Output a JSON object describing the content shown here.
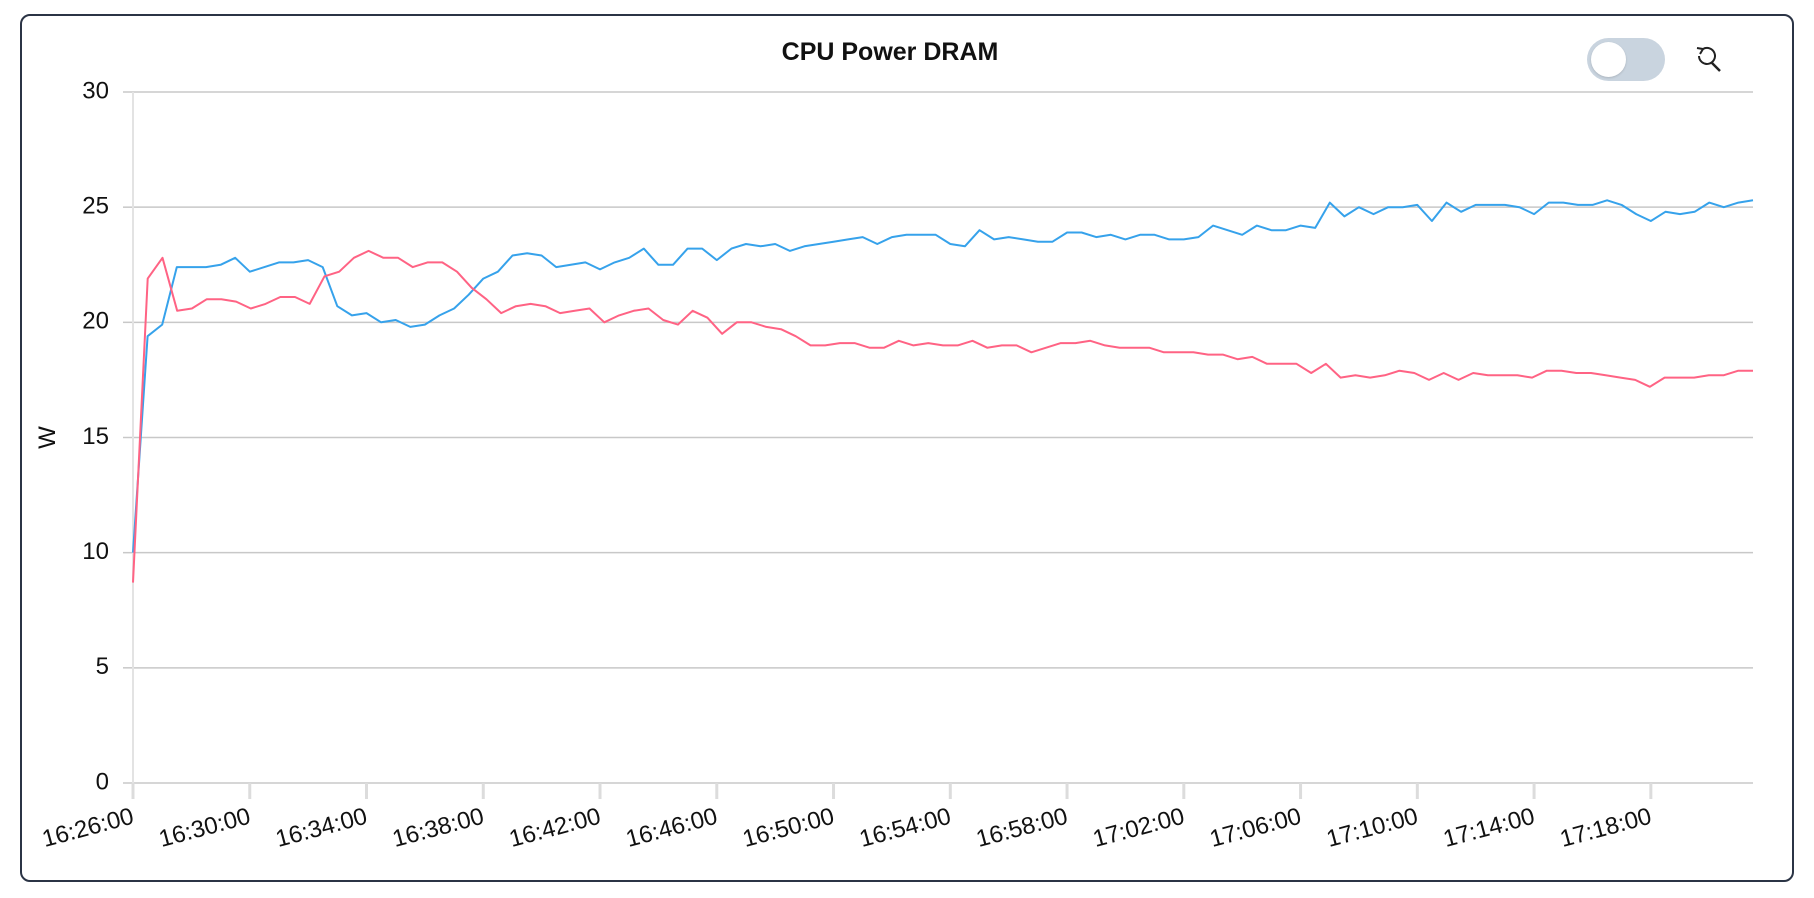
{
  "chart_data": {
    "type": "line",
    "title": "CPU Power DRAM",
    "xlabel": "",
    "ylabel": "W",
    "ylim": [
      0,
      30
    ],
    "yticks": [
      "0",
      "5",
      "10",
      "15",
      "20",
      "25",
      "30"
    ],
    "x_start": "16:26:00",
    "x_end": "17:21:30",
    "xticks": [
      "16:26:00",
      "16:30:00",
      "16:34:00",
      "16:38:00",
      "16:42:00",
      "16:46:00",
      "16:50:00",
      "16:54:00",
      "16:58:00",
      "17:02:00",
      "17:06:00",
      "17:10:00",
      "17:14:00",
      "17:18:00"
    ],
    "grid": true,
    "legend": "none",
    "series": [
      {
        "color": "#36a2eb",
        "values": [
          10.0,
          19.4,
          19.9,
          22.4,
          22.4,
          22.4,
          22.5,
          22.8,
          22.2,
          22.4,
          22.6,
          22.6,
          22.7,
          22.4,
          20.7,
          20.3,
          20.4,
          20.0,
          20.1,
          19.8,
          19.9,
          20.3,
          20.6,
          21.2,
          21.9,
          22.2,
          22.9,
          23.0,
          22.9,
          22.4,
          22.5,
          22.6,
          22.3,
          22.6,
          22.8,
          23.2,
          22.5,
          22.5,
          23.2,
          23.2,
          22.7,
          23.2,
          23.4,
          23.3,
          23.4,
          23.1,
          23.3,
          23.4,
          23.5,
          23.6,
          23.7,
          23.4,
          23.7,
          23.8,
          23.8,
          23.8,
          23.4,
          23.3,
          24.0,
          23.6,
          23.7,
          23.6,
          23.5,
          23.5,
          23.9,
          23.9,
          23.7,
          23.8,
          23.6,
          23.8,
          23.8,
          23.6,
          23.6,
          23.7,
          24.2,
          24.0,
          23.8,
          24.2,
          24.0,
          24.0,
          24.2,
          24.1,
          25.2,
          24.6,
          25.0,
          24.7,
          25.0,
          25.0,
          25.1,
          24.4,
          25.2,
          24.8,
          25.1,
          25.1,
          25.1,
          25.0,
          24.7,
          25.2,
          25.2,
          25.1,
          25.1,
          25.3,
          25.1,
          24.7,
          24.4,
          24.8,
          24.7,
          24.8,
          25.2,
          25.0,
          25.2,
          25.3
        ]
      },
      {
        "color": "#ff6384",
        "values": [
          8.7,
          21.9,
          22.8,
          20.5,
          20.6,
          21.0,
          21.0,
          20.9,
          20.6,
          20.8,
          21.1,
          21.1,
          20.8,
          22.0,
          22.2,
          22.8,
          23.1,
          22.8,
          22.8,
          22.4,
          22.6,
          22.6,
          22.2,
          21.5,
          21.0,
          20.4,
          20.7,
          20.8,
          20.7,
          20.4,
          20.5,
          20.6,
          20.0,
          20.3,
          20.5,
          20.6,
          20.1,
          19.9,
          20.5,
          20.2,
          19.5,
          20.0,
          20.0,
          19.8,
          19.7,
          19.4,
          19.0,
          19.0,
          19.1,
          19.1,
          18.9,
          18.9,
          19.2,
          19.0,
          19.1,
          19.0,
          19.0,
          19.2,
          18.9,
          19.0,
          19.0,
          18.7,
          18.9,
          19.1,
          19.1,
          19.2,
          19.0,
          18.9,
          18.9,
          18.9,
          18.7,
          18.7,
          18.7,
          18.6,
          18.6,
          18.4,
          18.5,
          18.2,
          18.2,
          18.2,
          17.8,
          18.2,
          17.6,
          17.7,
          17.6,
          17.7,
          17.9,
          17.8,
          17.5,
          17.8,
          17.5,
          17.8,
          17.7,
          17.7,
          17.7,
          17.6,
          17.9,
          17.9,
          17.8,
          17.8,
          17.7,
          17.6,
          17.5,
          17.2,
          17.6,
          17.6,
          17.6,
          17.7,
          17.7,
          17.9,
          17.9
        ]
      }
    ]
  },
  "controls": {
    "toggle_state": "off",
    "reset_icon": "zoom-reset-icon"
  },
  "colors": {
    "panel_border": "#2b3445",
    "grid": "#c8c8c8",
    "toggle_track": "#c9d4df"
  }
}
